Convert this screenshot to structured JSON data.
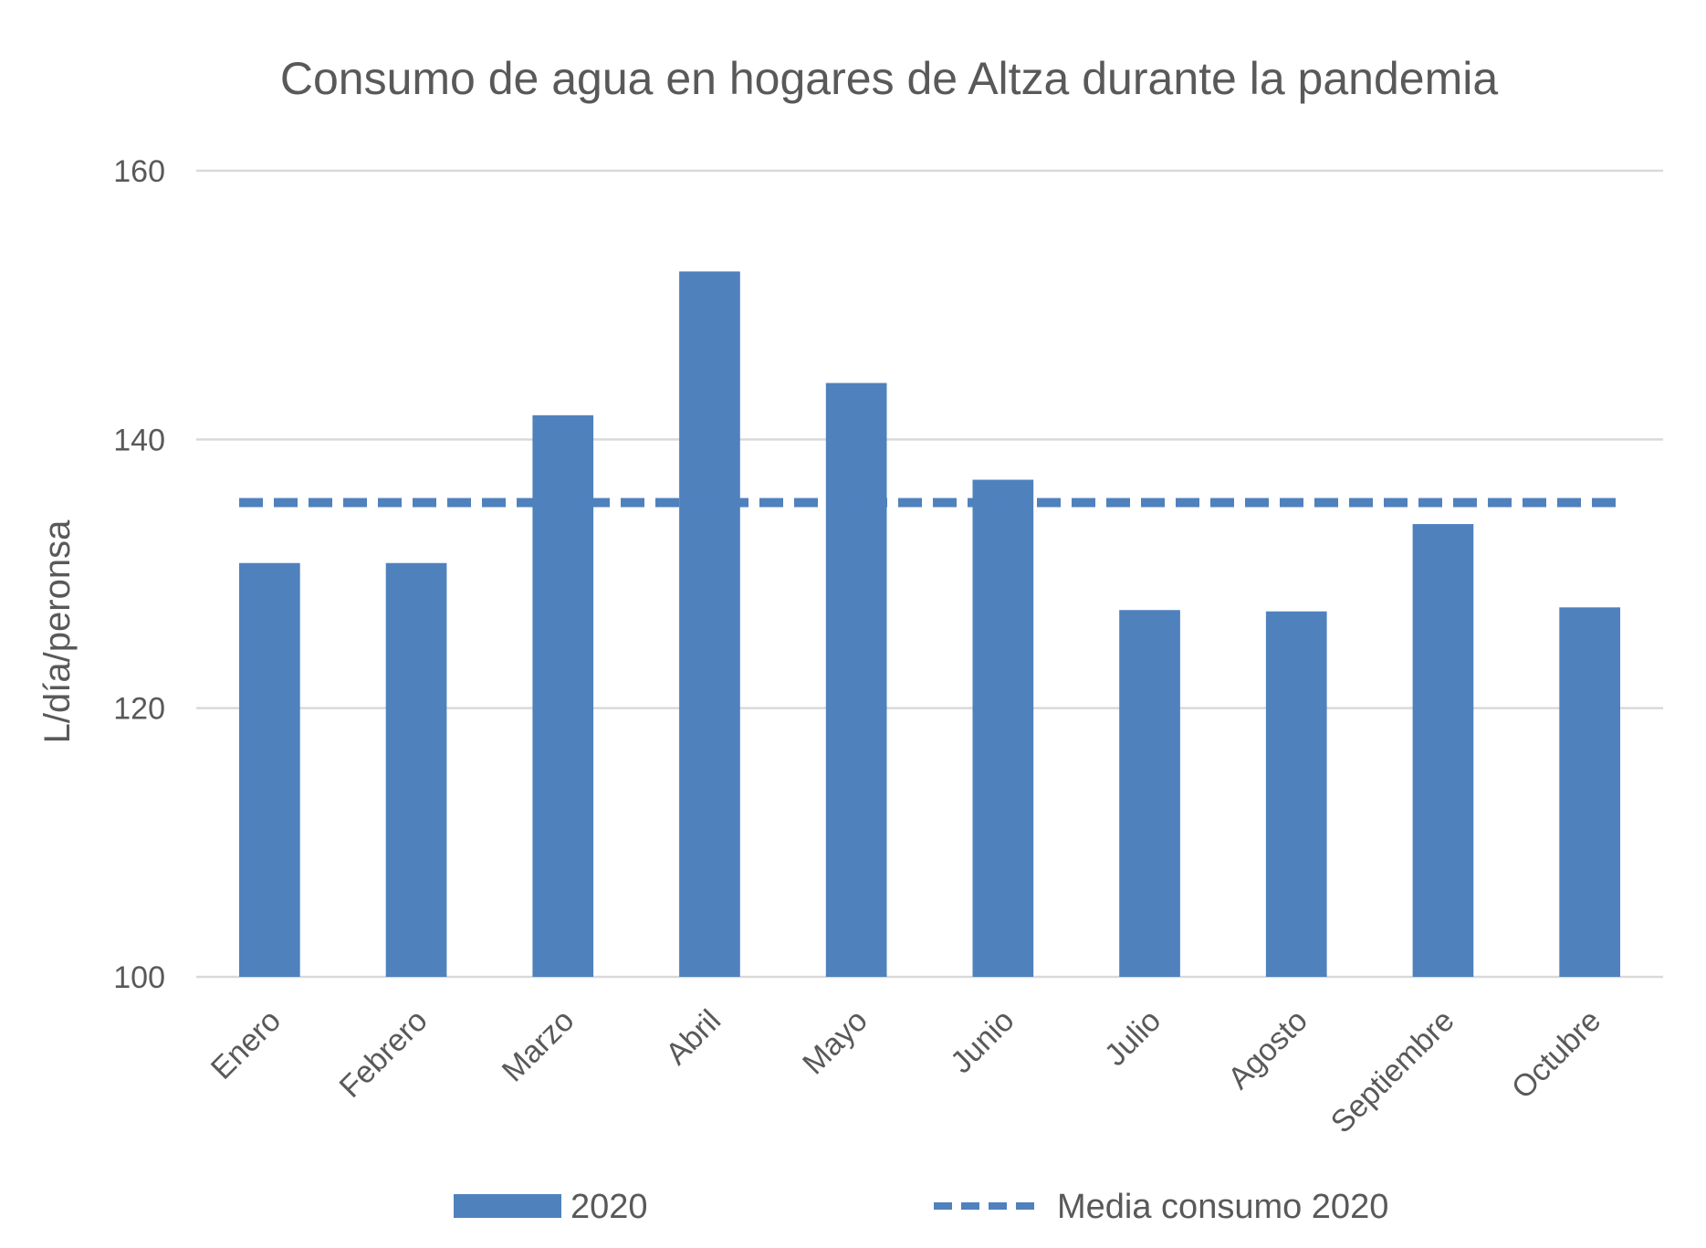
{
  "chart_data": {
    "type": "bar",
    "title": "Consumo de agua en hogares de Altza durante la pandemia",
    "ylabel": "L/día/peronsa",
    "xlabel": "",
    "ylim": [
      100,
      160
    ],
    "yticks": [
      100,
      120,
      140,
      160
    ],
    "grid": true,
    "legend_placement": "bottom",
    "categories": [
      "Enero",
      "Febrero",
      "Marzo",
      "Abril",
      "Mayo",
      "Junio",
      "Julio",
      "Agosto",
      "Septiembre",
      "Octubre"
    ],
    "series": [
      {
        "name": "2020",
        "kind": "bar",
        "color": "#4f81bd",
        "values": [
          130.8,
          130.8,
          141.8,
          152.5,
          144.2,
          137.0,
          127.3,
          127.2,
          133.7,
          127.5
        ]
      },
      {
        "name": "Media consumo 2020",
        "kind": "line-dashed",
        "color": "#4f81bd",
        "value": 135.3
      }
    ]
  }
}
